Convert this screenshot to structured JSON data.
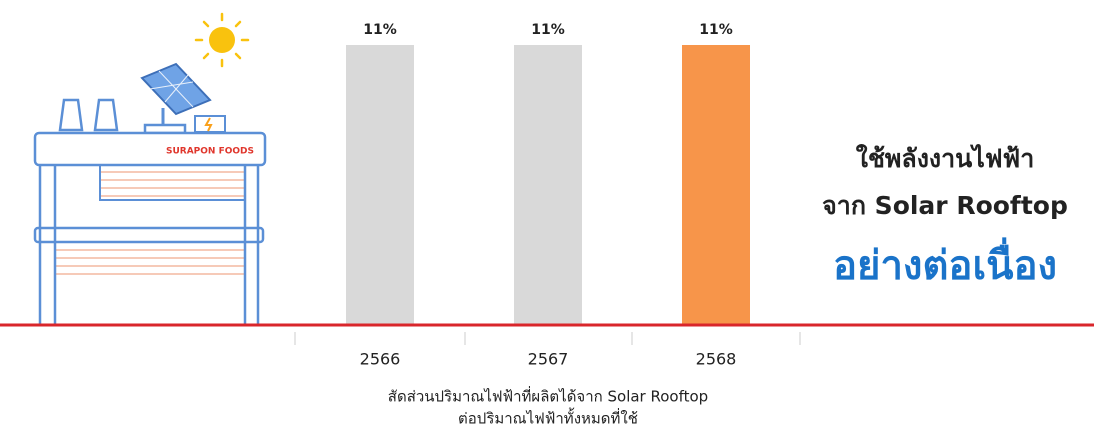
{
  "chart_data": {
    "type": "bar",
    "categories": [
      "2566",
      "2567",
      "2568"
    ],
    "values": [
      11,
      11,
      11
    ],
    "value_labels": [
      "11%",
      "11%",
      "11%"
    ],
    "colors": [
      "#d9d9d9",
      "#d9d9d9",
      "#f7954a"
    ],
    "baseline_color": "#d9262b",
    "x_label_lines": [
      "สัดส่วนปริมาณไฟฟ้าที่ผลิตได้จาก Solar Rooftop",
      "ต่อปริมาณไฟฟ้าทั้งหมดที่ใช้"
    ]
  },
  "headline": {
    "lines": [
      "ใช้พลังงานไฟฟ้า",
      "จาก Solar Rooftop"
    ],
    "highlight": "อย่างต่อเนื่อง"
  },
  "illustration": {
    "sign": "SURAPON FOODS"
  }
}
